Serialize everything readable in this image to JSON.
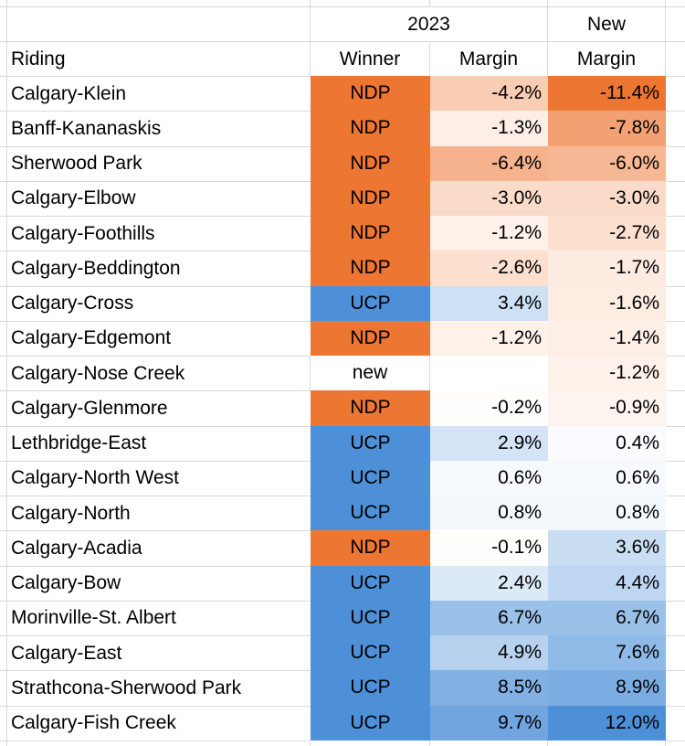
{
  "table": {
    "header": {
      "group_2023": "2023",
      "group_new": "New",
      "riding": "Riding",
      "winner": "Winner",
      "margin": "Margin",
      "new_margin": "Margin"
    },
    "rows": [
      {
        "riding": "Calgary-Klein",
        "winner": "NDP",
        "margin": -4.2,
        "new_margin": -11.4
      },
      {
        "riding": "Banff-Kananaskis",
        "winner": "NDP",
        "margin": -1.3,
        "new_margin": -7.8
      },
      {
        "riding": "Sherwood Park",
        "winner": "NDP",
        "margin": -6.4,
        "new_margin": -6.0
      },
      {
        "riding": "Calgary-Elbow",
        "winner": "NDP",
        "margin": -3.0,
        "new_margin": -3.0
      },
      {
        "riding": "Calgary-Foothills",
        "winner": "NDP",
        "margin": -1.2,
        "new_margin": -2.7
      },
      {
        "riding": "Calgary-Beddington",
        "winner": "NDP",
        "margin": -2.6,
        "new_margin": -1.7
      },
      {
        "riding": "Calgary-Cross",
        "winner": "UCP",
        "margin": 3.4,
        "new_margin": -1.6
      },
      {
        "riding": "Calgary-Edgemont",
        "winner": "NDP",
        "margin": -1.2,
        "new_margin": -1.4
      },
      {
        "riding": "Calgary-Nose Creek",
        "winner": "new",
        "margin": null,
        "new_margin": -1.2
      },
      {
        "riding": "Calgary-Glenmore",
        "winner": "NDP",
        "margin": -0.2,
        "new_margin": -0.9
      },
      {
        "riding": "Lethbridge-East",
        "winner": "UCP",
        "margin": 2.9,
        "new_margin": 0.4
      },
      {
        "riding": "Calgary-North West",
        "winner": "UCP",
        "margin": 0.6,
        "new_margin": 0.6
      },
      {
        "riding": "Calgary-North",
        "winner": "UCP",
        "margin": 0.8,
        "new_margin": 0.8
      },
      {
        "riding": "Calgary-Acadia",
        "winner": "NDP",
        "margin": -0.1,
        "new_margin": 3.6
      },
      {
        "riding": "Calgary-Bow",
        "winner": "UCP",
        "margin": 2.4,
        "new_margin": 4.4
      },
      {
        "riding": "Morinville-St. Albert",
        "winner": "UCP",
        "margin": 6.7,
        "new_margin": 6.7
      },
      {
        "riding": "Calgary-East",
        "winner": "UCP",
        "margin": 4.9,
        "new_margin": 7.6
      },
      {
        "riding": "Strathcona-Sherwood Park",
        "winner": "UCP",
        "margin": 8.5,
        "new_margin": 8.9
      },
      {
        "riding": "Calgary-Fish Creek",
        "winner": "UCP",
        "margin": 9.7,
        "new_margin": 12.0
      }
    ]
  },
  "colors": {
    "winner_fill": {
      "NDP": "#ED7633",
      "UCP": "#4E90D8",
      "new": "#FFFFFF"
    },
    "gridline": "#D8D8D8",
    "text": "#000000",
    "background": "#FFFFFF"
  },
  "margin_scale": {
    "negative_full": "#ED7633",
    "positive_full": "#4E90D8",
    "neutral": "#FFFFFF",
    "negative_limit": -11.4,
    "positive_limit": 12.0
  }
}
